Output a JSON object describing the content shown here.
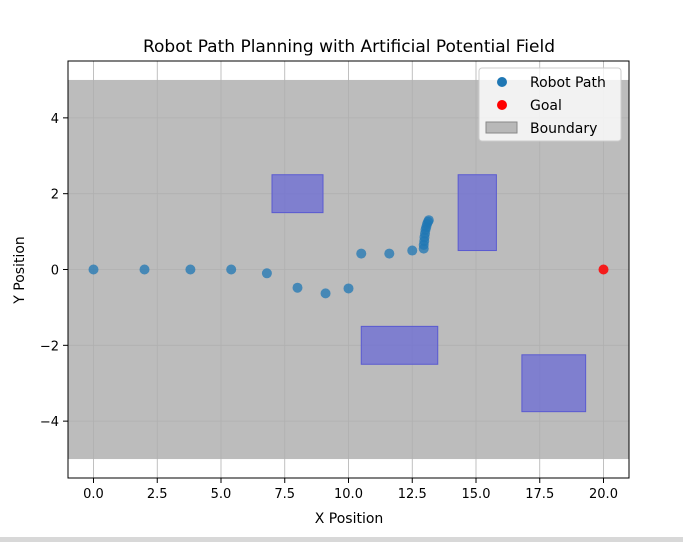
{
  "chart_data": {
    "type": "scatter",
    "title": "Robot Path Planning with Artificial Potential Field",
    "xlabel": "X Position",
    "ylabel": "Y Position",
    "xlim": [
      -1,
      21
    ],
    "ylim": [
      -5.5,
      5.5
    ],
    "grid": true,
    "x_ticks": [
      0.0,
      2.5,
      5.0,
      7.5,
      10.0,
      12.5,
      15.0,
      17.5,
      20.0
    ],
    "x_tick_labels": [
      "0.0",
      "2.5",
      "5.0",
      "7.5",
      "10.0",
      "12.5",
      "15.0",
      "17.5",
      "20.0"
    ],
    "y_ticks": [
      -4,
      -2,
      0,
      2,
      4
    ],
    "y_tick_labels": [
      "−4",
      "−2",
      "0",
      "2",
      "4"
    ],
    "legend": {
      "position": "upper-right",
      "entries": [
        {
          "label": "Robot Path",
          "color": "#1f77b4",
          "marker": "circle"
        },
        {
          "label": "Goal",
          "color": "#ff0000",
          "marker": "circle"
        },
        {
          "label": "Boundary",
          "color": "#a0a0a0",
          "marker": "rect"
        }
      ]
    },
    "boundary": {
      "x": [
        -1,
        21
      ],
      "y": [
        -5,
        5
      ],
      "color": "#a0a0a0",
      "alpha": 0.7
    },
    "obstacles": [
      {
        "x": [
          7.0,
          9.0
        ],
        "y": [
          1.5,
          2.5
        ]
      },
      {
        "x": [
          10.5,
          13.5
        ],
        "y": [
          -2.5,
          -1.5
        ]
      },
      {
        "x": [
          14.3,
          15.8
        ],
        "y": [
          0.5,
          2.5
        ]
      },
      {
        "x": [
          16.8,
          19.3
        ],
        "y": [
          -3.75,
          -2.25
        ]
      }
    ],
    "obstacle_color": "#6b6bd6",
    "series": [
      {
        "name": "Robot Path",
        "color": "#1f77b4",
        "x": [
          0.0,
          2.0,
          3.8,
          5.4,
          6.8,
          8.0,
          9.1,
          10.0,
          10.5,
          11.6,
          12.5,
          12.95,
          12.95,
          12.97,
          12.98,
          13.0,
          13.02,
          13.05,
          13.08,
          13.12,
          13.15
        ],
        "y": [
          0.0,
          0.0,
          0.0,
          0.0,
          -0.1,
          -0.48,
          -0.63,
          -0.5,
          0.42,
          0.42,
          0.5,
          0.55,
          0.65,
          0.75,
          0.85,
          0.95,
          1.05,
          1.12,
          1.2,
          1.26,
          1.3
        ]
      },
      {
        "name": "Goal",
        "color": "#ff0000",
        "x": [
          20.0
        ],
        "y": [
          0.0
        ]
      }
    ]
  }
}
